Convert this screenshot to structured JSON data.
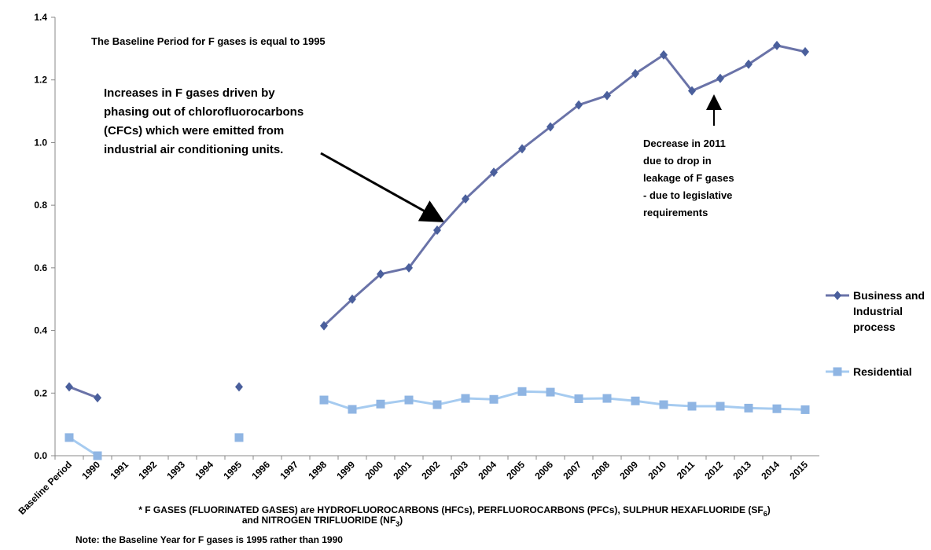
{
  "chart_data": {
    "type": "line",
    "categories": [
      "Baseline Period",
      "1990",
      "1991",
      "1992",
      "1993",
      "1994",
      "1995",
      "1996",
      "1997",
      "1998",
      "1999",
      "2000",
      "2001",
      "2002",
      "2003",
      "2004",
      "2005",
      "2006",
      "2007",
      "2008",
      "2009",
      "2010",
      "2011",
      "2012",
      "2013",
      "2014",
      "2015"
    ],
    "series": [
      {
        "name": "Business and Industrial process",
        "color": "#6a73a8",
        "marker_color": "#4a5f9c",
        "values": [
          0.22,
          0.185,
          null,
          null,
          null,
          null,
          0.22,
          null,
          null,
          0.415,
          0.5,
          0.58,
          0.6,
          0.72,
          0.82,
          0.905,
          0.98,
          1.05,
          1.12,
          1.15,
          1.22,
          1.28,
          1.165,
          1.205,
          1.25,
          1.31,
          1.29
        ]
      },
      {
        "name": "Residential",
        "color": "#a6cbf0",
        "marker_color": "#8fb5e3",
        "values": [
          0.058,
          0.0,
          null,
          null,
          null,
          null,
          0.058,
          null,
          null,
          0.178,
          0.148,
          0.165,
          0.178,
          0.163,
          0.183,
          0.18,
          0.205,
          0.203,
          0.182,
          0.183,
          0.175,
          0.163,
          0.158,
          0.158,
          0.152,
          0.15,
          0.147
        ]
      }
    ],
    "ylim": [
      0,
      1.4
    ],
    "yticks": [
      {
        "value": 0,
        "label": "0.0"
      },
      0.2,
      0.4,
      0.6,
      0.8,
      {
        "value": 1,
        "label": "1.0"
      },
      1.2,
      1.4
    ],
    "annotations": {
      "baseline": "The Baseline Period for F gases is equal to 1995",
      "increase": [
        "Increases in F gases driven by",
        "phasing out of chlorofluorocarbons",
        "(CFCs) which were emitted from",
        "industrial air conditioning units."
      ],
      "decrease": [
        "Decrease in 2011",
        "due to drop in",
        "leakage of F  gases",
        "- due to legislative",
        "requirements"
      ]
    },
    "footnote": {
      "part1": "* F GASES (FLUORINATED GASES) are HYDROFLUOROCARBONS (HFCs), PERFLUOROCARBONS (PFCs), SULPHUR HEXAFLUORIDE (SF",
      "sub1": "6",
      "part2": ")",
      "part3": "and NITROGEN TRIFLUORIDE (NF",
      "sub2": "3",
      "part4": ")"
    },
    "note": "Note: the Baseline Year for F gases is 1995 rather than 1990"
  }
}
